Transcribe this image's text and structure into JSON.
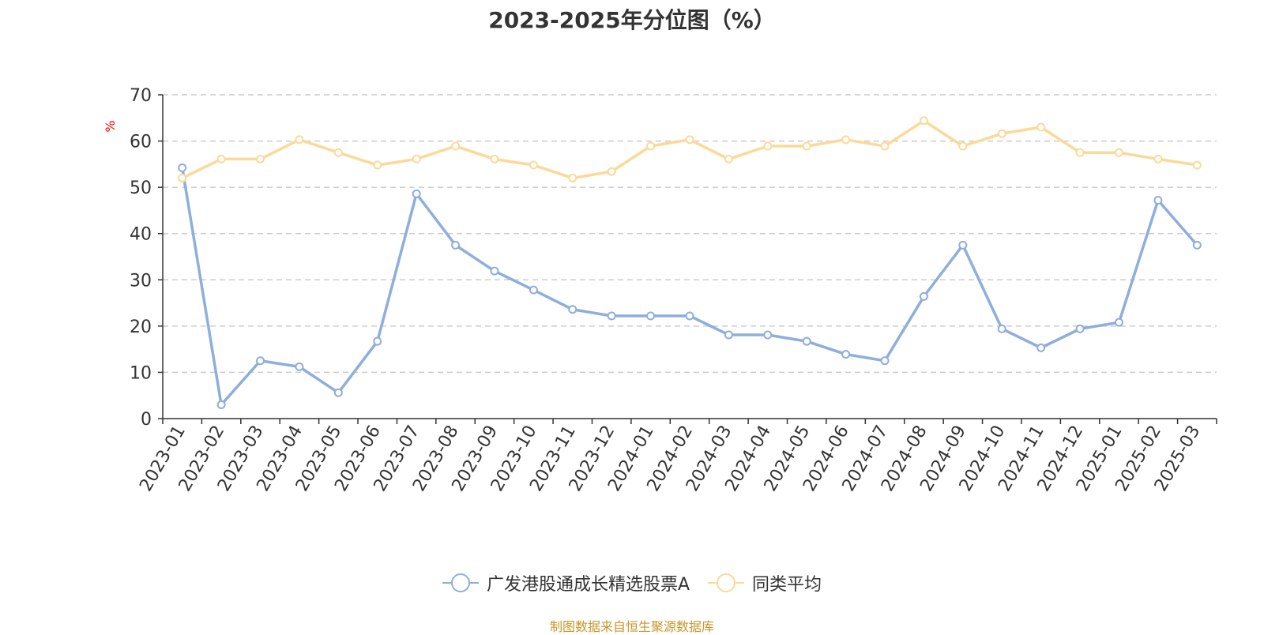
{
  "title": "2023-2025年分位图（%）",
  "source": "制图数据来自恒生聚源数据库",
  "chart_data": {
    "type": "line",
    "title": "2023-2025年分位图（%）",
    "ylabel": "%",
    "xlabel": "",
    "ylim": [
      0,
      70
    ],
    "yticks": [
      0,
      10,
      20,
      30,
      40,
      50,
      60,
      70
    ],
    "grid": true,
    "legend_position": "bottom",
    "categories": [
      "2023-01",
      "2023-02",
      "2023-03",
      "2023-04",
      "2023-05",
      "2023-06",
      "2023-07",
      "2023-08",
      "2023-09",
      "2023-10",
      "2023-11",
      "2023-12",
      "2024-01",
      "2024-02",
      "2024-03",
      "2024-04",
      "2024-05",
      "2024-06",
      "2024-07",
      "2024-08",
      "2024-09",
      "2024-10",
      "2024-11",
      "2024-12",
      "2025-01",
      "2025-02",
      "2025-03"
    ],
    "series": [
      {
        "name": "广发港股通成长精选股票A",
        "color": "#8eaedb",
        "values": [
          54.2,
          3.0,
          12.5,
          11.2,
          5.6,
          16.7,
          48.6,
          37.5,
          31.9,
          27.8,
          23.6,
          22.2,
          22.2,
          22.2,
          18.1,
          18.1,
          16.7,
          13.9,
          12.5,
          26.4,
          37.5,
          19.4,
          15.3,
          19.4,
          20.8,
          47.2,
          37.5
        ]
      },
      {
        "name": "同类平均",
        "color": "#fbd999",
        "values": [
          52.0,
          56.1,
          56.1,
          60.3,
          57.5,
          54.8,
          56.1,
          58.9,
          56.1,
          54.8,
          52.0,
          53.4,
          58.9,
          60.3,
          56.1,
          58.9,
          58.9,
          60.3,
          58.9,
          64.4,
          58.9,
          61.6,
          63.0,
          57.5,
          57.5,
          56.1,
          54.8
        ]
      }
    ]
  }
}
